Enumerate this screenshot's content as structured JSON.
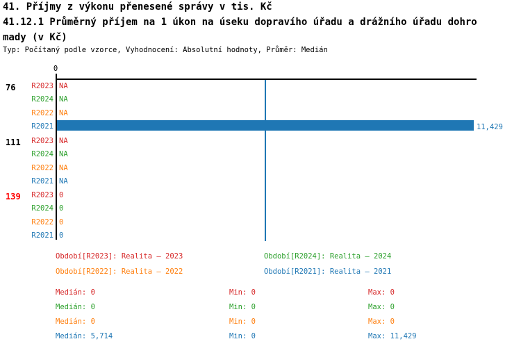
{
  "header": {
    "title_line1": "41. Příjmy z výkonu přenesené správy v tis. Kč",
    "title_line2": "41.12.1 Průměrný příjem na 1 úkon na úseku dopravího úřadu a drážního úřadu dohro",
    "title_line3": "mady (v Kč)",
    "meta": "Typ: Počítaný podle vzorce, Vyhodnocení: Absolutní hodnoty, Průměr: Medián"
  },
  "colors": {
    "r2023": "#d62728",
    "r2024": "#2ca02c",
    "r2022": "#ff7f0e",
    "r2021": "#1f77b4",
    "group_alert": "#ff0000",
    "group_normal": "#000000",
    "axis": "#000000",
    "median_line": "#1f77b4"
  },
  "chart_data": {
    "type": "bar",
    "orientation": "horizontal",
    "title": "41.12.1 Průměrný příjem na 1 úkon na úseku dopravího úřadu a drážního úřadu dohromady (v Kč)",
    "axis_zero_label": "0",
    "xlim": [
      0,
      11500
    ],
    "grid": false,
    "median_reference_line": 5714,
    "legend_position": "bottom",
    "groups": [
      {
        "label": "76",
        "label_color": "#000000",
        "rows": [
          {
            "series": "R2023",
            "color": "#d62728",
            "value": null,
            "display": "NA",
            "bar": false
          },
          {
            "series": "R2024",
            "color": "#2ca02c",
            "value": null,
            "display": "NA",
            "bar": false
          },
          {
            "series": "R2022",
            "color": "#ff7f0e",
            "value": null,
            "display": "NA",
            "bar": false
          },
          {
            "series": "R2021",
            "color": "#1f77b4",
            "value": 11429,
            "display": "11,429",
            "bar": true
          }
        ]
      },
      {
        "label": "111",
        "label_color": "#000000",
        "rows": [
          {
            "series": "R2023",
            "color": "#d62728",
            "value": null,
            "display": "NA",
            "bar": false
          },
          {
            "series": "R2024",
            "color": "#2ca02c",
            "value": null,
            "display": "NA",
            "bar": false
          },
          {
            "series": "R2022",
            "color": "#ff7f0e",
            "value": null,
            "display": "NA",
            "bar": false
          },
          {
            "series": "R2021",
            "color": "#1f77b4",
            "value": null,
            "display": "NA",
            "bar": false
          }
        ]
      },
      {
        "label": "139",
        "label_color": "#ff0000",
        "rows": [
          {
            "series": "R2023",
            "color": "#d62728",
            "value": 0,
            "display": "0",
            "bar": false
          },
          {
            "series": "R2024",
            "color": "#2ca02c",
            "value": 0,
            "display": "0",
            "bar": false
          },
          {
            "series": "R2022",
            "color": "#ff7f0e",
            "value": 0,
            "display": "0",
            "bar": false
          },
          {
            "series": "R2021",
            "color": "#1f77b4",
            "value": 0,
            "display": "0",
            "bar": false
          }
        ]
      }
    ]
  },
  "legend": {
    "items": [
      {
        "text": "Období[R2023]: Realita – 2023",
        "color": "#d62728",
        "col": 0,
        "row": 0
      },
      {
        "text": "Období[R2024]: Realita – 2024",
        "color": "#2ca02c",
        "col": 1,
        "row": 0
      },
      {
        "text": "Období[R2022]: Realita – 2022",
        "color": "#ff7f0e",
        "col": 0,
        "row": 1
      },
      {
        "text": "Období[R2021]: Realita – 2021",
        "color": "#1f77b4",
        "col": 1,
        "row": 1
      }
    ]
  },
  "stats": {
    "rows": [
      {
        "series": "R2023",
        "color": "#d62728",
        "median": "Medián: 0",
        "min": "Min: 0",
        "max": "Max: 0"
      },
      {
        "series": "R2024",
        "color": "#2ca02c",
        "median": "Medián: 0",
        "min": "Min: 0",
        "max": "Max: 0"
      },
      {
        "series": "R2022",
        "color": "#ff7f0e",
        "median": "Medián: 0",
        "min": "Min: 0",
        "max": "Max: 0"
      },
      {
        "series": "R2021",
        "color": "#1f77b4",
        "median": "Medián: 5,714",
        "min": "Min: 0",
        "max": "Max: 11,429"
      }
    ]
  }
}
